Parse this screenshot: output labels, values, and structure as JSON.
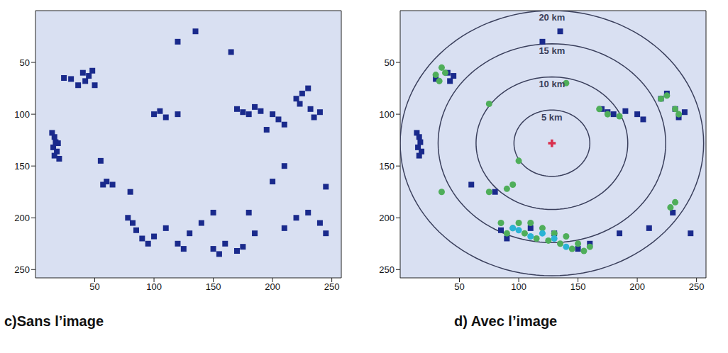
{
  "chart_data": [
    {
      "type": "scatter",
      "caption": "c)Sans l’image",
      "xlim": [
        0,
        258
      ],
      "ylim": [
        0,
        258
      ],
      "xticks": [
        50,
        100,
        150,
        200,
        250
      ],
      "yticks": [
        50,
        100,
        150,
        200,
        250
      ],
      "series": [
        {
          "color": "#1a2a8c",
          "marker": "square",
          "x": [
            14,
            16,
            17,
            15,
            18,
            16,
            19,
            20,
            40,
            45,
            42,
            50,
            30,
            24,
            48,
            36,
            100,
            105,
            110,
            120,
            170,
            175,
            180,
            185,
            190,
            200,
            205,
            210,
            195,
            220,
            225,
            223,
            232,
            235,
            230,
            240,
            60,
            57,
            65,
            55,
            80,
            78,
            82,
            85,
            90,
            95,
            100,
            110,
            120,
            125,
            130,
            140,
            150,
            155,
            160,
            170,
            175,
            185,
            180,
            210,
            220,
            230,
            240,
            245,
            150,
            135,
            120,
            165,
            200,
            210,
            245
          ],
          "y": [
            118,
            122,
            127,
            132,
            136,
            140,
            128,
            143,
            60,
            63,
            68,
            72,
            66,
            65,
            58,
            72,
            100,
            97,
            103,
            100,
            95,
            98,
            100,
            93,
            97,
            100,
            105,
            110,
            115,
            85,
            80,
            90,
            95,
            103,
            75,
            98,
            165,
            168,
            168,
            145,
            175,
            200,
            205,
            212,
            220,
            225,
            218,
            210,
            225,
            230,
            215,
            205,
            230,
            235,
            225,
            232,
            228,
            215,
            195,
            210,
            200,
            195,
            205,
            215,
            195,
            20,
            30,
            40,
            165,
            150,
            170
          ]
        }
      ]
    },
    {
      "type": "scatter",
      "caption": "d) Avec l’image",
      "xlim": [
        0,
        258
      ],
      "ylim": [
        0,
        258
      ],
      "xticks": [
        50,
        100,
        150,
        200,
        250
      ],
      "yticks": [
        50,
        100,
        150,
        200,
        250
      ],
      "series": [
        {
          "color": "#1a2a8c",
          "marker": "square",
          "x": [
            14,
            16,
            17,
            15,
            18,
            16,
            40,
            45,
            42,
            30,
            170,
            175,
            180,
            190,
            200,
            205,
            220,
            225,
            232,
            235,
            240,
            60,
            80,
            85,
            90,
            110,
            130,
            150,
            160,
            185,
            210,
            230,
            245,
            135,
            120
          ],
          "y": [
            118,
            122,
            127,
            132,
            136,
            140,
            60,
            63,
            68,
            66,
            95,
            98,
            100,
            97,
            100,
            105,
            85,
            80,
            95,
            103,
            98,
            168,
            175,
            212,
            220,
            210,
            215,
            230,
            225,
            215,
            210,
            195,
            215,
            20,
            30
          ]
        },
        {
          "color": "#4fae5a",
          "marker": "circle",
          "x": [
            35,
            30,
            38,
            33,
            75,
            100,
            75,
            90,
            95,
            35,
            175,
            185,
            168,
            220,
            225,
            232,
            235,
            228,
            232,
            140,
            85,
            95,
            105,
            115,
            125,
            135,
            145,
            155,
            110,
            120,
            130,
            100,
            90,
            150,
            140,
            160
          ],
          "y": [
            55,
            62,
            60,
            68,
            90,
            145,
            175,
            172,
            168,
            175,
            100,
            102,
            95,
            85,
            82,
            95,
            100,
            190,
            185,
            70,
            205,
            210,
            215,
            220,
            222,
            225,
            230,
            232,
            205,
            210,
            215,
            205,
            215,
            225,
            218,
            228
          ]
        },
        {
          "color": "#2bb3d6",
          "marker": "circle",
          "x": [
            100,
            110,
            120,
            130,
            140,
            95
          ],
          "y": [
            212,
            218,
            215,
            220,
            228,
            210
          ]
        },
        {
          "color": "#d9304e",
          "marker": "cross",
          "x": [
            128
          ],
          "y": [
            128
          ]
        }
      ],
      "rings": {
        "x": 128,
        "y": 128,
        "radius": [
          128,
          96,
          64,
          32
        ],
        "labels": [
          "20 km",
          "15 km",
          "10 km",
          "5 km"
        ],
        "color": "#3a3f5c"
      }
    }
  ]
}
